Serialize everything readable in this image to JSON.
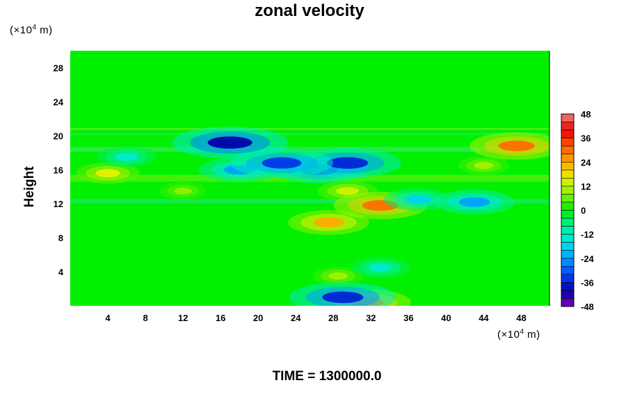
{
  "chart_data": {
    "type": "heatmap",
    "title": "zonal velocity",
    "xlabel": "",
    "ylabel": "Height",
    "x_unit": "(×10",
    "x_unit_exp": "4",
    "x_unit_tail": " m)",
    "y_unit": "(×10",
    "y_unit_exp": "4",
    "y_unit_tail": " m)",
    "xlim": [
      0,
      51
    ],
    "ylim": [
      0,
      30
    ],
    "x_ticks": [
      "4",
      "8",
      "12",
      "16",
      "20",
      "24",
      "28",
      "32",
      "36",
      "40",
      "44",
      "48"
    ],
    "y_ticks": [
      "4",
      "8",
      "12",
      "16",
      "20",
      "24",
      "28"
    ],
    "colorbar": {
      "min": -48,
      "max": 48,
      "step": 4,
      "ticks": [
        "48",
        "36",
        "24",
        "12",
        "0",
        "-12",
        "-24",
        "-36",
        "-48"
      ]
    },
    "features": [
      {
        "x": 17.0,
        "y": 19.2,
        "value": -40
      },
      {
        "x": 22.5,
        "y": 16.8,
        "value": -34
      },
      {
        "x": 29.5,
        "y": 16.8,
        "value": -36
      },
      {
        "x": 26.5,
        "y": 16.0,
        "value": -30
      },
      {
        "x": 18.0,
        "y": 16.0,
        "value": -24
      },
      {
        "x": 43.0,
        "y": 12.2,
        "value": -24
      },
      {
        "x": 37.0,
        "y": 12.5,
        "value": -18
      },
      {
        "x": 29.0,
        "y": 1.0,
        "value": -36
      },
      {
        "x": 33.0,
        "y": 4.5,
        "value": -14
      },
      {
        "x": 6.0,
        "y": 17.5,
        "value": -14
      },
      {
        "x": 47.5,
        "y": 18.8,
        "value": 30
      },
      {
        "x": 33.0,
        "y": 11.8,
        "value": 30
      },
      {
        "x": 27.5,
        "y": 9.8,
        "value": 24
      },
      {
        "x": 31.5,
        "y": 0.4,
        "value": 28
      },
      {
        "x": 4.0,
        "y": 15.6,
        "value": 16
      },
      {
        "x": 29.5,
        "y": 13.5,
        "value": 14
      },
      {
        "x": 28.5,
        "y": 3.5,
        "value": 10
      },
      {
        "x": 12.0,
        "y": 13.5,
        "value": 8
      },
      {
        "x": 44.0,
        "y": 16.5,
        "value": 10
      }
    ]
  },
  "footer": {
    "text": "TIME = 1300000.0"
  }
}
